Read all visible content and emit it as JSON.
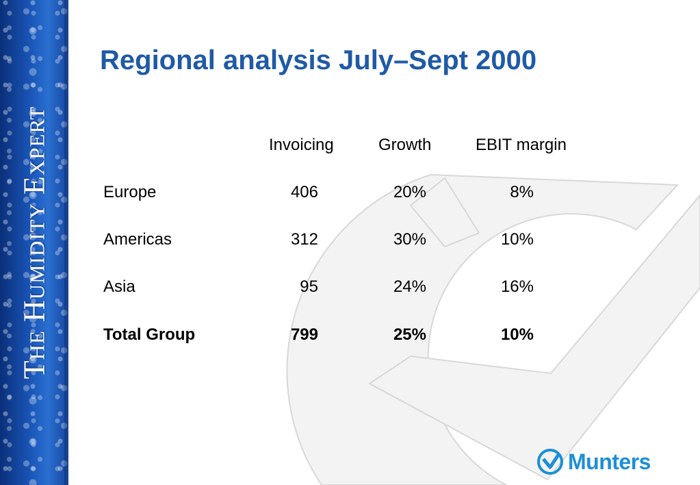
{
  "sidebar": {
    "brand_text": "The Humidity Expert"
  },
  "slide": {
    "title": "Regional analysis July–Sept 2000"
  },
  "table": {
    "headers": [
      "Invoicing",
      "Growth",
      "EBIT margin"
    ],
    "rows": [
      {
        "region": "Europe",
        "invoicing": "406",
        "growth": "20%",
        "ebit": "8%"
      },
      {
        "region": "Americas",
        "invoicing": "312",
        "growth": "30%",
        "ebit": "10%"
      },
      {
        "region": "Asia",
        "invoicing": "95",
        "growth": "24%",
        "ebit": "16%"
      }
    ],
    "total": {
      "region": "Total Group",
      "invoicing": "799",
      "growth": "25%",
      "ebit": "10%"
    }
  },
  "logo": {
    "text": "Munters",
    "color": "#1c8fd6"
  },
  "colors": {
    "title": "#1f5aa6",
    "sidebar": "#1a56b8"
  }
}
